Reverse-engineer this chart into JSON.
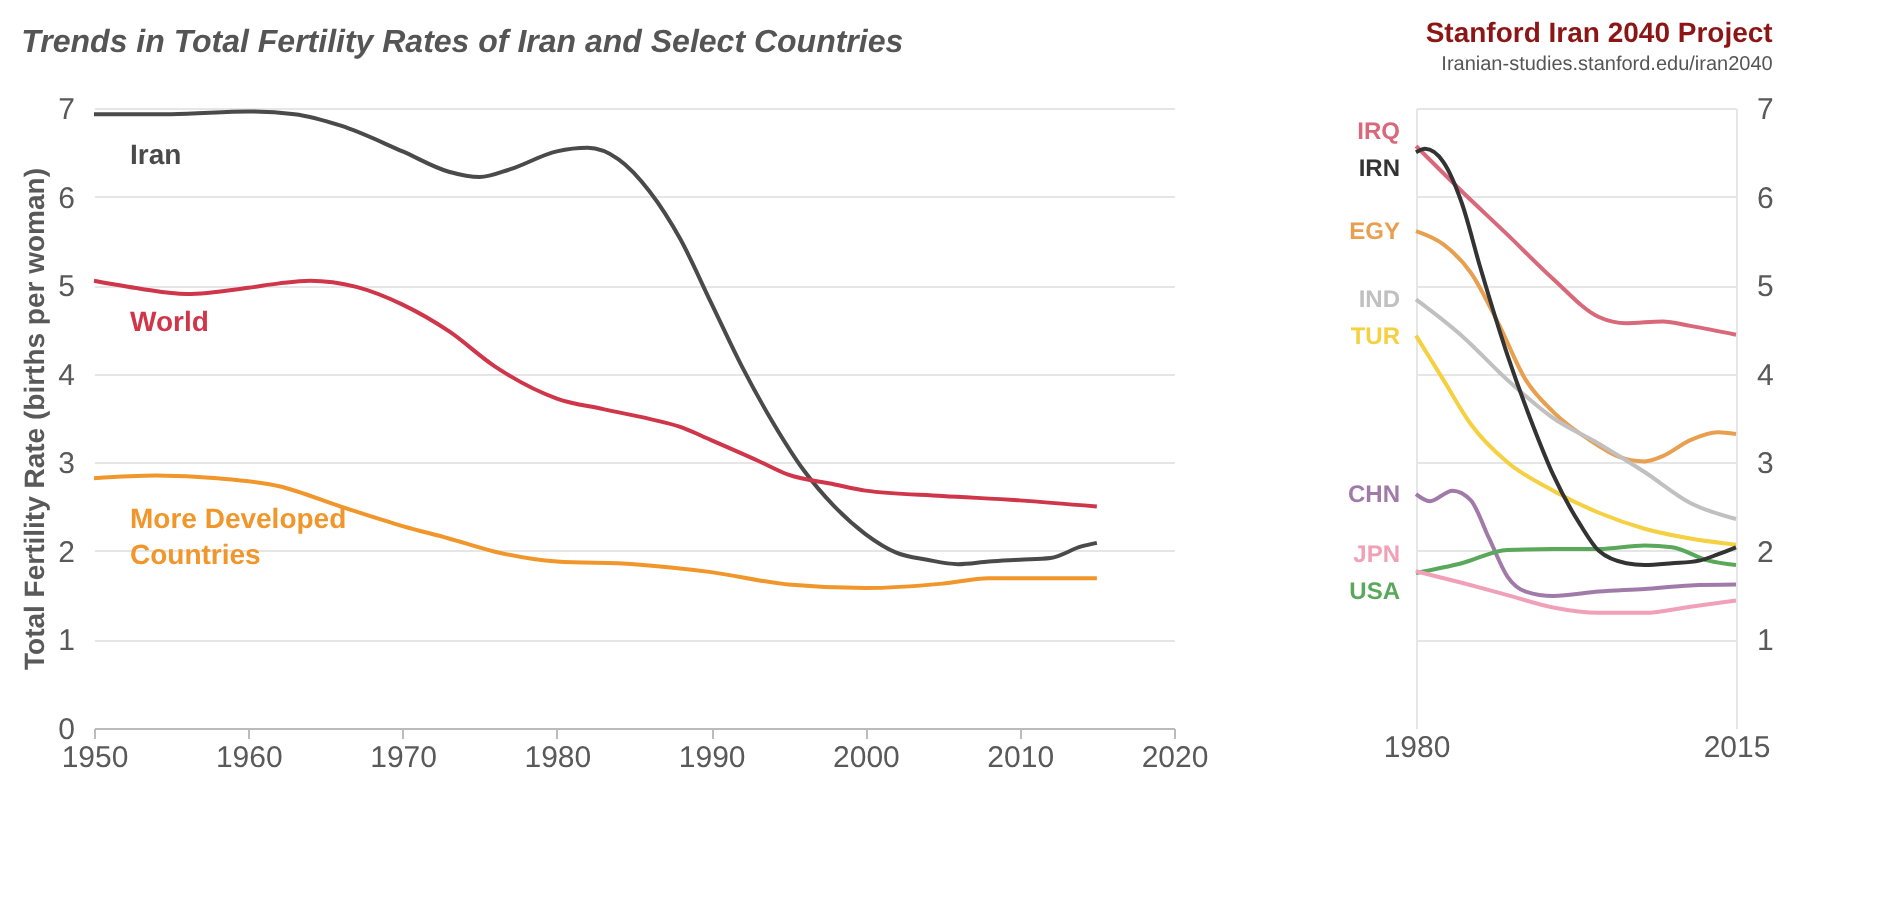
{
  "chart_data": [
    {
      "type": "line",
      "title": "Trends in Total Fertility Rates of Iran and Select Countries",
      "ylabel": "Total Fertility Rate (births per woman)",
      "xlim": [
        1950,
        2020
      ],
      "xticks": [
        1950,
        1960,
        1970,
        1980,
        1990,
        2000,
        2010,
        2020
      ],
      "ylim": [
        0,
        7
      ],
      "yticks": [
        0,
        1,
        2,
        3,
        4,
        5,
        6,
        7
      ],
      "grid": "y",
      "legend": false,
      "series": [
        {
          "name": "Iran",
          "color": "#4a4a4a",
          "x": [
            1950,
            1955,
            1960,
            1963,
            1966,
            1970,
            1973,
            1975,
            1977,
            1980,
            1982,
            1984,
            1986,
            1988,
            1990,
            1992,
            1994,
            1996,
            1998,
            2000,
            2002,
            2004,
            2006,
            2008,
            2010,
            2012,
            2014,
            2015
          ],
          "values": [
            6.93,
            6.93,
            6.96,
            6.93,
            6.8,
            6.51,
            6.28,
            6.22,
            6.31,
            6.51,
            6.55,
            6.42,
            6.06,
            5.52,
            4.8,
            4.08,
            3.45,
            2.91,
            2.5,
            2.19,
            1.98,
            1.9,
            1.85,
            1.88,
            1.9,
            1.92,
            2.05,
            2.09
          ]
        },
        {
          "name": "World",
          "color": "#d0364a",
          "x": [
            1950,
            1953,
            1956,
            1960,
            1962,
            1964,
            1967,
            1970,
            1973,
            1976,
            1980,
            1983,
            1986,
            1988,
            1990,
            1993,
            1995,
            1998,
            2000,
            2005,
            2010,
            2015
          ],
          "values": [
            5.05,
            4.96,
            4.9,
            4.97,
            5.02,
            5.05,
            4.98,
            4.78,
            4.48,
            4.08,
            3.72,
            3.6,
            3.49,
            3.4,
            3.25,
            3.02,
            2.86,
            2.75,
            2.68,
            2.62,
            2.57,
            2.5
          ]
        },
        {
          "name": "More Developed Countries",
          "color": "#f0962a",
          "x": [
            1950,
            1954,
            1958,
            1962,
            1966,
            1970,
            1973,
            1976,
            1980,
            1985,
            1990,
            1995,
            2000,
            2005,
            2008,
            2015
          ],
          "values": [
            2.82,
            2.85,
            2.82,
            2.73,
            2.5,
            2.28,
            2.14,
            1.99,
            1.88,
            1.85,
            1.76,
            1.62,
            1.58,
            1.63,
            1.69,
            1.69
          ]
        }
      ]
    },
    {
      "type": "line",
      "annotations": [
        "Stanford Iran 2040 Project",
        "Iranian-studies.stanford.edu/iran2040"
      ],
      "xlim": [
        1980,
        2015
      ],
      "xticks": [
        1980,
        2015
      ],
      "y2lim": [
        0,
        7
      ],
      "y2ticks": [
        1,
        2,
        3,
        4,
        5,
        6,
        7
      ],
      "grid": true,
      "legend": false,
      "series": [
        {
          "name": "IRQ",
          "color": "#d9687a",
          "axis": "y2",
          "x": [
            1980,
            1985,
            1990,
            1995,
            2000,
            2003,
            2007,
            2010,
            2015
          ],
          "values": [
            6.57,
            6.06,
            5.57,
            5.07,
            4.64,
            4.57,
            4.59,
            4.54,
            4.44
          ]
        },
        {
          "name": "EGY",
          "color": "#e8a050",
          "axis": "y2",
          "x": [
            1980,
            1983,
            1986,
            1989,
            1992,
            1995,
            1999,
            2002,
            2005,
            2007,
            2010,
            2013,
            2015
          ],
          "values": [
            5.61,
            5.46,
            5.14,
            4.57,
            3.93,
            3.57,
            3.25,
            3.07,
            3.01,
            3.07,
            3.25,
            3.34,
            3.32
          ]
        },
        {
          "name": "IND",
          "color": "#c0c0c0",
          "axis": "y2",
          "x": [
            1980,
            1985,
            1990,
            1995,
            2000,
            2005,
            2010,
            2015
          ],
          "values": [
            4.84,
            4.43,
            3.93,
            3.5,
            3.21,
            2.89,
            2.54,
            2.36
          ]
        },
        {
          "name": "TUR",
          "color": "#f5d040",
          "axis": "y2",
          "x": [
            1980,
            1983,
            1986,
            1990,
            1995,
            2000,
            2005,
            2010,
            2015
          ],
          "values": [
            4.43,
            3.93,
            3.43,
            3.0,
            2.68,
            2.43,
            2.25,
            2.14,
            2.07
          ]
        },
        {
          "name": "CHN",
          "color": "#a07aa8",
          "axis": "y2",
          "x": [
            1980,
            1981.5,
            1984,
            1986,
            1988,
            1990,
            1992,
            1995,
            2000,
            2005,
            2010,
            2015
          ],
          "values": [
            2.64,
            2.56,
            2.68,
            2.57,
            2.14,
            1.71,
            1.54,
            1.49,
            1.54,
            1.57,
            1.61,
            1.62
          ]
        },
        {
          "name": "USA",
          "color": "#5aa85a",
          "axis": "y2",
          "x": [
            1980,
            1985,
            1990,
            1995,
            2000,
            2005,
            2008,
            2012,
            2015
          ],
          "values": [
            1.75,
            1.86,
            2.01,
            2.02,
            2.02,
            2.06,
            2.04,
            1.89,
            1.84
          ]
        },
        {
          "name": "JPN",
          "color": "#f0a0b8",
          "axis": "y2",
          "x": [
            1980,
            1985,
            1990,
            1995,
            2000,
            2005,
            2010,
            2015
          ],
          "values": [
            1.77,
            1.64,
            1.5,
            1.36,
            1.3,
            1.3,
            1.37,
            1.44
          ]
        },
        {
          "name": "IRN",
          "color": "#333333",
          "axis": "y2",
          "x": [
            1980,
            1981,
            1983,
            1985,
            1987,
            1990,
            1993,
            1995,
            1998,
            2000,
            2003,
            2005,
            2008,
            2011,
            2013,
            2015
          ],
          "values": [
            6.5,
            6.54,
            6.39,
            5.93,
            5.21,
            4.21,
            3.36,
            2.86,
            2.29,
            2.0,
            1.86,
            1.84,
            1.86,
            1.89,
            1.96,
            2.04
          ]
        }
      ]
    }
  ]
}
